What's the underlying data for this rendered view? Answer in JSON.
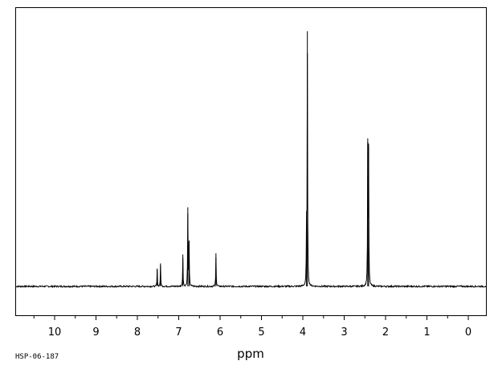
{
  "sample_id": "HSP-06-187",
  "chart_data": {
    "type": "line",
    "title": "",
    "xlabel": "ppm",
    "ylabel": "",
    "x_reversed": true,
    "xlim": [
      11.0,
      -0.45
    ],
    "ylim": [
      -0.2,
      1.1
    ],
    "grid": false,
    "x_ticks": [
      10,
      9,
      8,
      7,
      6,
      5,
      4,
      3,
      2,
      1,
      0
    ],
    "x_tick_labels": [
      "10",
      "9",
      "8",
      "7",
      "6",
      "5",
      "4",
      "3",
      "2",
      "1",
      "0"
    ],
    "series": [
      {
        "peaks": [
          {
            "ppm": 7.52,
            "intensity": 0.07
          },
          {
            "ppm": 7.44,
            "intensity": 0.09
          },
          {
            "ppm": 6.9,
            "intensity": 0.125
          },
          {
            "ppm": 6.78,
            "intensity": 0.31
          },
          {
            "ppm": 6.75,
            "intensity": 0.18
          },
          {
            "ppm": 6.1,
            "intensity": 0.13
          },
          {
            "ppm": 3.91,
            "intensity": 0.24
          },
          {
            "ppm": 3.89,
            "intensity": 1.0
          },
          {
            "ppm": 2.43,
            "intensity": 0.58
          },
          {
            "ppm": 2.41,
            "intensity": 0.56
          }
        ],
        "baseline": 0.0
      }
    ]
  }
}
